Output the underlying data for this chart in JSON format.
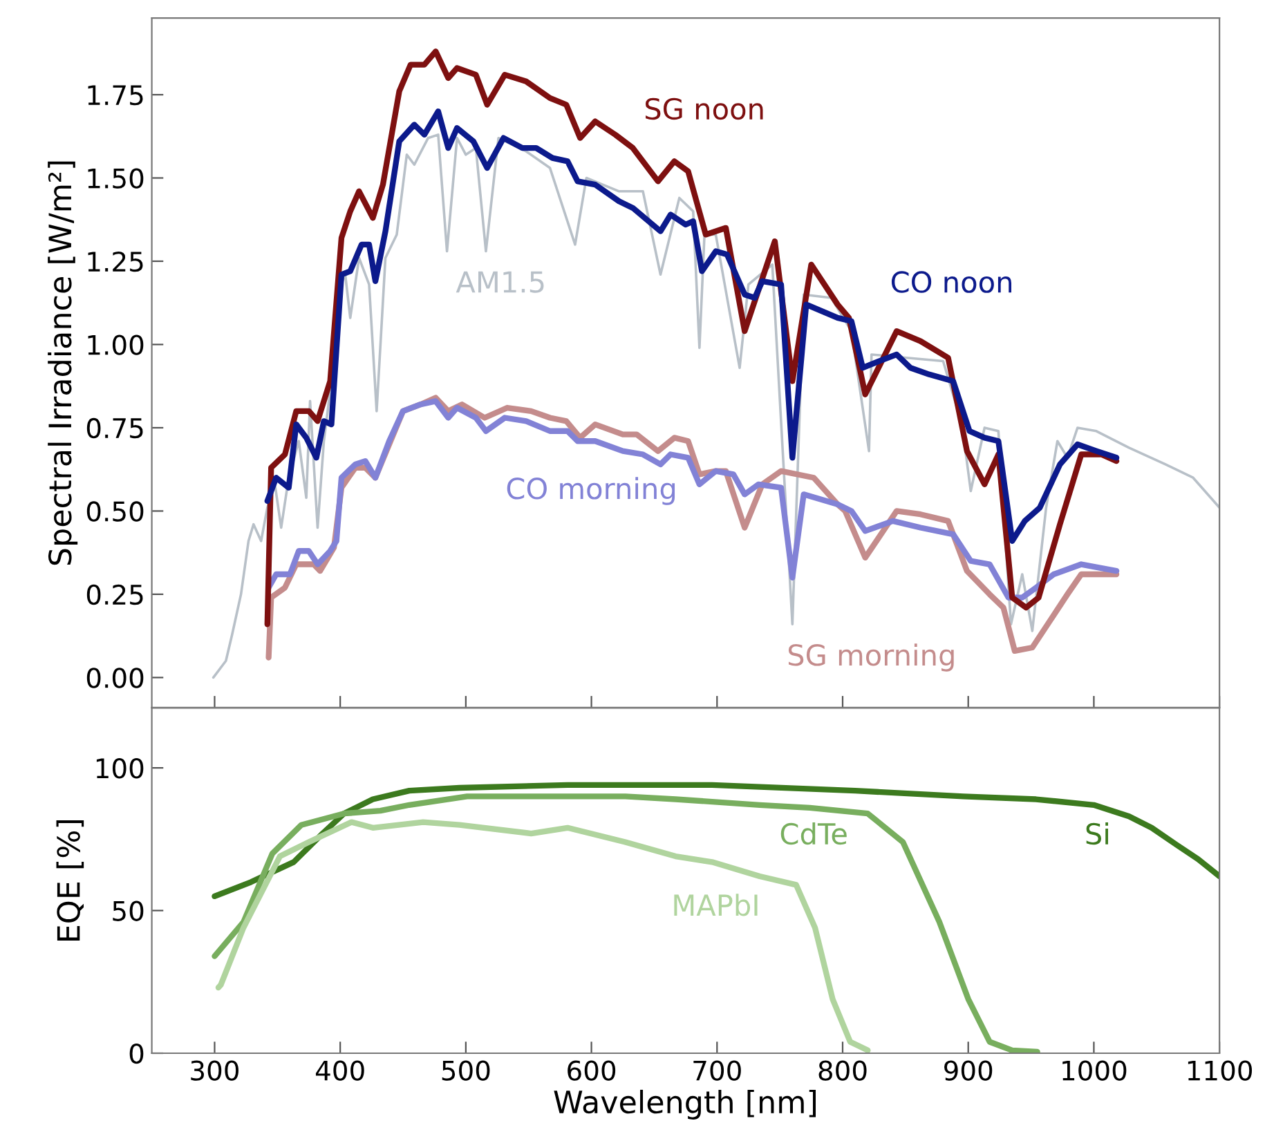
{
  "chart_data": [
    {
      "type": "line",
      "ylabel": "Spectral Irradiance [W/m²]",
      "xlim": [
        250,
        1100
      ],
      "ylim": [
        -0.09,
        1.98
      ],
      "xticks": [
        300,
        400,
        500,
        600,
        700,
        800,
        900,
        1000,
        1100
      ],
      "yticks": [
        {
          "value": 0,
          "label": "0.00"
        },
        {
          "value": 0.25,
          "label": "0.25"
        },
        {
          "value": 0.5,
          "label": "0.50"
        },
        {
          "value": 0.75,
          "label": "0.75"
        },
        {
          "value": 1.0,
          "label": "1.00"
        },
        {
          "value": 1.25,
          "label": "1.25"
        },
        {
          "value": 1.5,
          "label": "1.50"
        },
        {
          "value": 1.75,
          "label": "1.75"
        }
      ],
      "tick_labels": "y",
      "grid": false,
      "legend": false,
      "line_style": "solid",
      "series": [
        {
          "name": "AM1.5",
          "color": "#b8c0c8",
          "x": [
            299,
            309,
            314,
            321,
            327,
            331,
            337,
            342,
            348,
            353,
            359,
            367,
            373,
            376,
            382,
            387,
            392,
            397,
            404,
            408,
            415,
            423,
            429,
            436,
            445,
            453,
            459,
            470,
            478,
            485,
            493,
            500,
            508,
            516,
            526,
            548,
            567,
            587,
            596,
            622,
            641,
            655,
            670,
            681,
            686,
            690,
            699,
            718,
            725,
            744,
            760,
            769,
            791,
            807,
            821,
            823,
            851,
            880,
            895,
            902,
            913,
            924,
            934,
            943,
            951,
            962,
            971,
            979,
            987,
            1002,
            1028,
            1057,
            1079,
            1100
          ],
          "values": [
            0.0,
            0.05,
            0.13,
            0.25,
            0.41,
            0.46,
            0.41,
            0.51,
            0.58,
            0.45,
            0.6,
            0.71,
            0.54,
            0.83,
            0.45,
            0.71,
            0.86,
            1.15,
            1.21,
            1.08,
            1.26,
            1.18,
            0.8,
            1.26,
            1.33,
            1.57,
            1.54,
            1.62,
            1.63,
            1.28,
            1.62,
            1.57,
            1.59,
            1.28,
            1.62,
            1.58,
            1.53,
            1.3,
            1.5,
            1.46,
            1.46,
            1.21,
            1.44,
            1.4,
            0.99,
            1.33,
            1.33,
            0.93,
            1.18,
            1.24,
            0.16,
            1.15,
            1.14,
            1.04,
            0.68,
            0.97,
            0.96,
            0.95,
            0.76,
            0.56,
            0.75,
            0.74,
            0.16,
            0.31,
            0.14,
            0.51,
            0.71,
            0.66,
            0.75,
            0.74,
            0.69,
            0.64,
            0.6,
            0.51
          ]
        },
        {
          "name": "SG morning",
          "color": "#c48c8c",
          "x": [
            343,
            345,
            356,
            365,
            379,
            384,
            395,
            401,
            412,
            420,
            428,
            450,
            464,
            476,
            486,
            497,
            515,
            533,
            552,
            567,
            580,
            591,
            603,
            625,
            636,
            653,
            666,
            677,
            686,
            699,
            707,
            722,
            736,
            751,
            777,
            796,
            802,
            818,
            843,
            862,
            884,
            899,
            917,
            928,
            937,
            951,
            965,
            979,
            990,
            1006,
            1018
          ],
          "values": [
            0.06,
            0.24,
            0.27,
            0.34,
            0.34,
            0.32,
            0.39,
            0.57,
            0.63,
            0.63,
            0.6,
            0.8,
            0.82,
            0.84,
            0.8,
            0.82,
            0.78,
            0.81,
            0.8,
            0.78,
            0.77,
            0.72,
            0.76,
            0.73,
            0.73,
            0.68,
            0.72,
            0.71,
            0.61,
            0.62,
            0.62,
            0.45,
            0.58,
            0.62,
            0.6,
            0.52,
            0.5,
            0.36,
            0.5,
            0.49,
            0.47,
            0.32,
            0.25,
            0.21,
            0.08,
            0.09,
            0.17,
            0.25,
            0.31,
            0.31,
            0.31
          ]
        },
        {
          "name": "CO morning",
          "color": "#8282d6",
          "x": [
            343,
            349,
            360,
            367,
            375,
            382,
            392,
            397,
            401,
            412,
            420,
            428,
            439,
            450,
            464,
            476,
            486,
            493,
            508,
            516,
            531,
            548,
            567,
            581,
            589,
            603,
            625,
            641,
            655,
            663,
            677,
            686,
            699,
            713,
            722,
            733,
            751,
            760,
            769,
            796,
            807,
            818,
            840,
            862,
            888,
            902,
            917,
            932,
            943,
            954,
            968,
            990,
            1018
          ],
          "values": [
            0.27,
            0.31,
            0.31,
            0.38,
            0.38,
            0.34,
            0.38,
            0.41,
            0.6,
            0.64,
            0.65,
            0.6,
            0.71,
            0.8,
            0.82,
            0.83,
            0.78,
            0.81,
            0.78,
            0.74,
            0.78,
            0.77,
            0.74,
            0.74,
            0.71,
            0.71,
            0.68,
            0.67,
            0.64,
            0.67,
            0.66,
            0.58,
            0.62,
            0.61,
            0.55,
            0.58,
            0.57,
            0.3,
            0.55,
            0.52,
            0.5,
            0.44,
            0.47,
            0.45,
            0.43,
            0.35,
            0.34,
            0.24,
            0.24,
            0.27,
            0.31,
            0.34,
            0.32
          ]
        },
        {
          "name": "SG noon",
          "color": "#7e1010",
          "x": [
            342,
            345,
            356,
            365,
            375,
            382,
            392,
            401,
            408,
            415,
            426,
            434,
            447,
            456,
            467,
            476,
            486,
            493,
            508,
            517,
            531,
            548,
            567,
            580,
            591,
            603,
            619,
            633,
            653,
            666,
            677,
            691,
            707,
            722,
            746,
            760,
            775,
            796,
            805,
            818,
            843,
            862,
            884,
            899,
            913,
            924,
            935,
            946,
            956,
            973,
            990,
            1006,
            1018
          ],
          "values": [
            0.16,
            0.63,
            0.67,
            0.8,
            0.8,
            0.77,
            0.89,
            1.32,
            1.4,
            1.46,
            1.38,
            1.48,
            1.76,
            1.84,
            1.84,
            1.88,
            1.8,
            1.83,
            1.81,
            1.72,
            1.81,
            1.79,
            1.74,
            1.72,
            1.62,
            1.67,
            1.63,
            1.59,
            1.49,
            1.55,
            1.52,
            1.33,
            1.35,
            1.04,
            1.31,
            0.89,
            1.24,
            1.12,
            1.08,
            0.85,
            1.04,
            1.01,
            0.96,
            0.68,
            0.58,
            0.67,
            0.24,
            0.21,
            0.24,
            0.46,
            0.67,
            0.67,
            0.65
          ]
        },
        {
          "name": "CO noon",
          "color": "#0c1a8c",
          "x": [
            342,
            349,
            359,
            365,
            373,
            381,
            387,
            393,
            401,
            408,
            417,
            423,
            428,
            436,
            447,
            459,
            467,
            478,
            486,
            493,
            506,
            517,
            530,
            545,
            556,
            569,
            581,
            589,
            603,
            622,
            633,
            655,
            663,
            675,
            681,
            688,
            699,
            708,
            722,
            730,
            736,
            751,
            760,
            771,
            796,
            807,
            816,
            829,
            843,
            854,
            869,
            888,
            901,
            913,
            924,
            935,
            945,
            957,
            973,
            987,
            1002,
            1018
          ],
          "values": [
            0.53,
            0.6,
            0.57,
            0.76,
            0.72,
            0.66,
            0.77,
            0.76,
            1.21,
            1.22,
            1.3,
            1.3,
            1.19,
            1.34,
            1.61,
            1.66,
            1.63,
            1.7,
            1.59,
            1.65,
            1.61,
            1.53,
            1.62,
            1.59,
            1.59,
            1.56,
            1.55,
            1.49,
            1.48,
            1.43,
            1.41,
            1.34,
            1.39,
            1.36,
            1.37,
            1.22,
            1.28,
            1.27,
            1.15,
            1.14,
            1.19,
            1.18,
            0.66,
            1.12,
            1.08,
            1.07,
            0.93,
            0.95,
            0.97,
            0.93,
            0.91,
            0.89,
            0.74,
            0.72,
            0.71,
            0.41,
            0.47,
            0.51,
            0.64,
            0.7,
            0.68,
            0.66
          ]
        }
      ]
    },
    {
      "type": "line",
      "xlabel": "Wavelength [nm]",
      "ylabel": "EQE [%]",
      "xlim": [
        250,
        1100
      ],
      "ylim": [
        0,
        121
      ],
      "xticks": [
        300,
        400,
        500,
        600,
        700,
        800,
        900,
        1000,
        1100
      ],
      "yticks": [
        0,
        50,
        100
      ],
      "grid": false,
      "legend": false,
      "line_style": "solid",
      "series": [
        {
          "name": "Si",
          "color": "#3c7a1e",
          "x": [
            300,
            329,
            363,
            386,
            403,
            426,
            455,
            495,
            581,
            696,
            810,
            896,
            954,
            1000,
            1028,
            1046,
            1066,
            1083,
            1100
          ],
          "values": [
            55,
            60,
            67,
            77,
            84,
            89,
            92,
            93,
            94,
            94,
            92,
            90,
            89,
            87,
            83,
            79,
            73,
            68,
            62
          ]
        },
        {
          "name": "CdTe",
          "color": "#78ae5e",
          "x": [
            300,
            323,
            346,
            369,
            403,
            432,
            455,
            501,
            552,
            627,
            667,
            734,
            774,
            820,
            848,
            877,
            900,
            917,
            935,
            955
          ],
          "values": [
            34,
            46,
            70,
            80,
            84,
            85,
            87,
            90,
            90,
            90,
            89,
            87,
            86,
            84,
            74,
            46,
            19,
            4,
            1,
            0.5
          ]
        },
        {
          "name": "MAPbI",
          "color": "#b0d49e",
          "x": [
            303,
            305,
            323,
            352,
            375,
            409,
            426,
            466,
            495,
            552,
            581,
            627,
            667,
            696,
            734,
            763,
            778,
            792,
            806,
            820
          ],
          "values": [
            23,
            24,
            44,
            69,
            74,
            81,
            79,
            81,
            80,
            77,
            79,
            74,
            69,
            67,
            62,
            59,
            44,
            19,
            4,
            1
          ]
        }
      ]
    }
  ]
}
